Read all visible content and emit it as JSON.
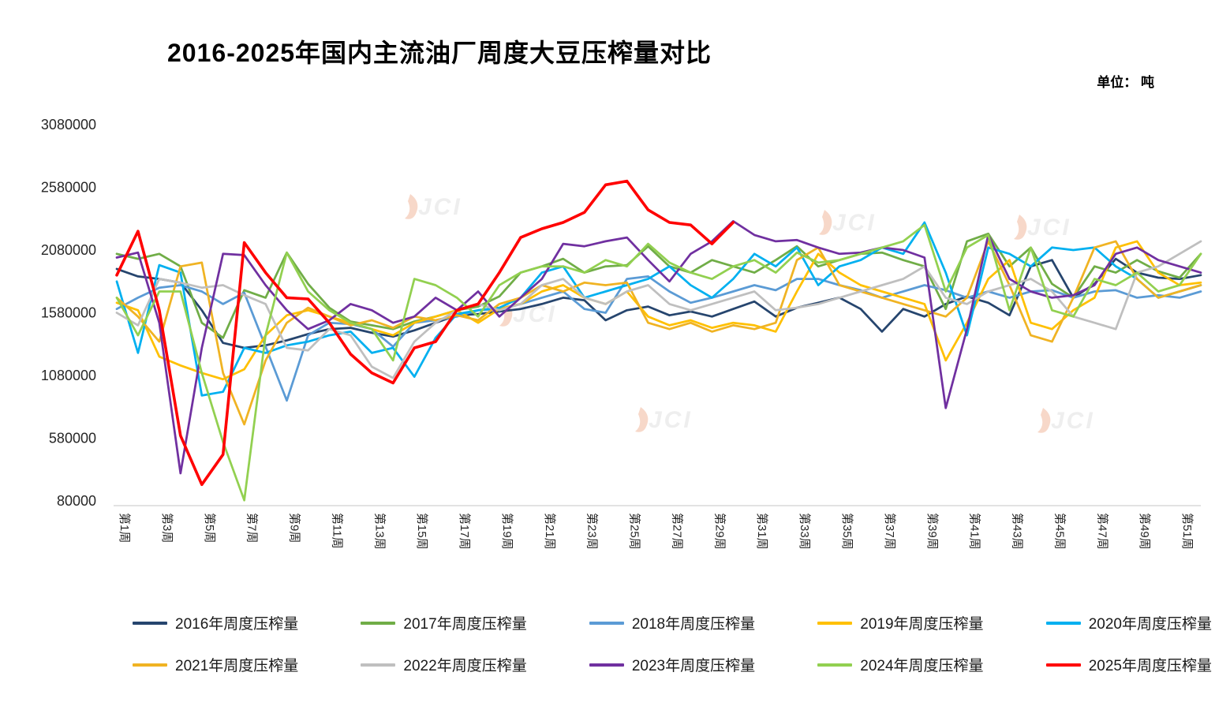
{
  "title": "2016-2025年国内主流油厂周度大豆压榨量对比",
  "unit_label": "单位： 吨",
  "watermark": "JCI",
  "chart_data": {
    "type": "line",
    "weeks": 52,
    "grid": false,
    "legend_position": "bottom",
    "ylim": [
      80000,
      3080000
    ],
    "y_ticks": [
      3080000,
      2580000,
      2080000,
      1580000,
      1080000,
      580000,
      80000
    ],
    "x_labels": [
      "第1周",
      "第3周",
      "第5周",
      "第7周",
      "第9周",
      "第11周",
      "第13周",
      "第15周",
      "第17周",
      "第19周",
      "第21周",
      "第23周",
      "第25周",
      "第27周",
      "第29周",
      "第31周",
      "第33周",
      "第35周",
      "第37周",
      "第39周",
      "第41周",
      "第43周",
      "第45周",
      "第47周",
      "第49周",
      "第51周"
    ],
    "series": [
      {
        "name": "2016年周度压榨量",
        "color": "#26456E",
        "values": [
          1930000,
          1870000,
          1850000,
          1820000,
          1600000,
          1340000,
          1300000,
          1320000,
          1360000,
          1410000,
          1450000,
          1460000,
          1420000,
          1390000,
          1440000,
          1500000,
          1560000,
          1570000,
          1590000,
          1610000,
          1650000,
          1700000,
          1680000,
          1520000,
          1600000,
          1630000,
          1560000,
          1590000,
          1550000,
          1610000,
          1670000,
          1550000,
          1620000,
          1660000,
          1700000,
          1610000,
          1430000,
          1610000,
          1550000,
          1650000,
          1710000,
          1660000,
          1560000,
          1950000,
          2000000,
          1700000,
          1810000,
          2010000,
          1900000,
          1860000,
          1850000,
          1880000
        ]
      },
      {
        "name": "2017年周度压榨量",
        "color": "#70AD47",
        "values": [
          2050000,
          2010000,
          2050000,
          1950000,
          1500000,
          1380000,
          1760000,
          1700000,
          2060000,
          1810000,
          1620000,
          1510000,
          1480000,
          1450000,
          1510000,
          1550000,
          1600000,
          1630000,
          1710000,
          1900000,
          1950000,
          2010000,
          1900000,
          1950000,
          1960000,
          2110000,
          1950000,
          1900000,
          2000000,
          1950000,
          1900000,
          2000000,
          2110000,
          1950000,
          2000000,
          2050000,
          2060000,
          2000000,
          1950000,
          1610000,
          2150000,
          2210000,
          1950000,
          2100000,
          1810000,
          1700000,
          1950000,
          1900000,
          2000000,
          1910000,
          1860000,
          2050000
        ]
      },
      {
        "name": "2018年周度压榨量",
        "color": "#5B9BD5",
        "values": [
          1610000,
          1700000,
          1780000,
          1800000,
          1750000,
          1650000,
          1740000,
          1310000,
          880000,
          1400000,
          1500000,
          1490000,
          1450000,
          1310000,
          1500000,
          1520000,
          1550000,
          1600000,
          1610000,
          1650000,
          1700000,
          1750000,
          1610000,
          1580000,
          1850000,
          1870000,
          1750000,
          1660000,
          1700000,
          1750000,
          1800000,
          1760000,
          1850000,
          1850000,
          1800000,
          1760000,
          1700000,
          1750000,
          1800000,
          1760000,
          1700000,
          1750000,
          1700000,
          1750000,
          1760000,
          1700000,
          1750000,
          1760000,
          1700000,
          1720000,
          1700000,
          1750000
        ]
      },
      {
        "name": "2019年周度压榨量",
        "color": "#FFC000",
        "values": [
          1660000,
          1600000,
          1230000,
          1160000,
          1100000,
          1050000,
          1130000,
          1400000,
          1560000,
          1600000,
          1550000,
          1500000,
          1450000,
          1400000,
          1500000,
          1550000,
          1600000,
          1500000,
          1610000,
          1650000,
          1750000,
          1800000,
          1700000,
          1650000,
          1750000,
          1550000,
          1480000,
          1520000,
          1460000,
          1500000,
          1480000,
          1430000,
          1750000,
          2050000,
          1900000,
          1800000,
          1750000,
          1700000,
          1650000,
          1200000,
          1500000,
          1850000,
          2000000,
          1500000,
          1450000,
          1600000,
          1700000,
          2100000,
          2150000,
          1900000,
          1800000,
          1820000
        ]
      },
      {
        "name": "2020年周度压榨量",
        "color": "#00B0F0",
        "values": [
          1830000,
          1260000,
          1960000,
          1900000,
          920000,
          950000,
          1300000,
          1260000,
          1320000,
          1350000,
          1400000,
          1430000,
          1260000,
          1300000,
          1070000,
          1380000,
          1570000,
          1600000,
          1620000,
          1700000,
          1900000,
          1950000,
          1700000,
          1750000,
          1800000,
          1850000,
          1950000,
          1800000,
          1700000,
          1850000,
          2050000,
          1950000,
          2100000,
          1800000,
          1950000,
          2000000,
          2100000,
          2050000,
          2300000,
          1900000,
          1400000,
          2100000,
          2050000,
          1950000,
          2100000,
          2080000,
          2100000,
          1950000,
          1850000,
          1700000,
          1750000,
          1800000
        ]
      },
      {
        "name": "2021年周度压榨量",
        "color": "#F0B323",
        "values": [
          1700000,
          1550000,
          1350000,
          1950000,
          1980000,
          1100000,
          690000,
          1200000,
          1500000,
          1620000,
          1550000,
          1480000,
          1520000,
          1460000,
          1550000,
          1520000,
          1560000,
          1520000,
          1650000,
          1700000,
          1800000,
          1750000,
          1820000,
          1800000,
          1820000,
          1500000,
          1450000,
          1500000,
          1430000,
          1480000,
          1450000,
          1500000,
          2000000,
          2100000,
          1800000,
          1750000,
          1700000,
          1650000,
          1600000,
          1550000,
          1700000,
          2150000,
          1800000,
          1400000,
          1350000,
          1700000,
          2100000,
          2150000,
          1850000,
          1700000,
          1750000,
          1800000
        ]
      },
      {
        "name": "2022年周度压榨量",
        "color": "#BFBFBF",
        "values": [
          1580000,
          1480000,
          1850000,
          1820000,
          1780000,
          1800000,
          1720000,
          1650000,
          1300000,
          1280000,
          1450000,
          1400000,
          1150000,
          1060000,
          1350000,
          1500000,
          1600000,
          1650000,
          1600000,
          1650000,
          1800000,
          1850000,
          1700000,
          1650000,
          1750000,
          1800000,
          1650000,
          1600000,
          1650000,
          1700000,
          1750000,
          1600000,
          1620000,
          1650000,
          1700000,
          1750000,
          1800000,
          1850000,
          1950000,
          1700000,
          1650000,
          1750000,
          1800000,
          1850000,
          1750000,
          1550000,
          1500000,
          1450000,
          1900000,
          1950000,
          2050000,
          2150000
        ]
      },
      {
        "name": "2023年周度压榨量",
        "color": "#7030A0",
        "values": [
          2020000,
          2060000,
          1500000,
          300000,
          1300000,
          2050000,
          2040000,
          1800000,
          1600000,
          1450000,
          1520000,
          1650000,
          1600000,
          1500000,
          1550000,
          1700000,
          1600000,
          1750000,
          1550000,
          1700000,
          1850000,
          2130000,
          2110000,
          2150000,
          2180000,
          2000000,
          1830000,
          2050000,
          2150000,
          2310000,
          2200000,
          2150000,
          2160000,
          2100000,
          2050000,
          2060000,
          2100000,
          2080000,
          2020000,
          820000,
          1450000,
          2200000,
          1850000,
          1750000,
          1700000,
          1720000,
          1800000,
          2050000,
          2100000,
          2000000,
          1950000,
          1900000
        ]
      },
      {
        "name": "2024年周度压榨量",
        "color": "#92D050",
        "values": [
          1700000,
          1400000,
          1750000,
          1750000,
          1100000,
          550000,
          85000,
          1400000,
          2060000,
          1750000,
          1600000,
          1500000,
          1450000,
          1200000,
          1850000,
          1800000,
          1700000,
          1550000,
          1800000,
          1900000,
          1950000,
          1950000,
          1900000,
          2000000,
          1950000,
          2130000,
          1980000,
          1900000,
          1850000,
          1950000,
          2000000,
          1900000,
          2060000,
          1980000,
          2000000,
          2050000,
          2100000,
          2150000,
          2280000,
          1750000,
          2100000,
          2200000,
          1600000,
          2100000,
          1600000,
          1550000,
          1850000,
          1800000,
          1900000,
          1750000,
          1800000,
          2050000
        ]
      },
      {
        "name": "2025年周度压榨量",
        "color": "#FF0000",
        "values": [
          1880000,
          2230000,
          1600000,
          600000,
          210000,
          450000,
          2140000,
          1900000,
          1700000,
          1690000,
          1500000,
          1250000,
          1100000,
          1020000,
          1300000,
          1350000,
          1600000,
          1650000,
          1900000,
          2180000,
          2250000,
          2300000,
          2380000,
          2600000,
          2630000,
          2400000,
          2300000,
          2280000,
          2130000,
          2300000
        ]
      }
    ]
  }
}
